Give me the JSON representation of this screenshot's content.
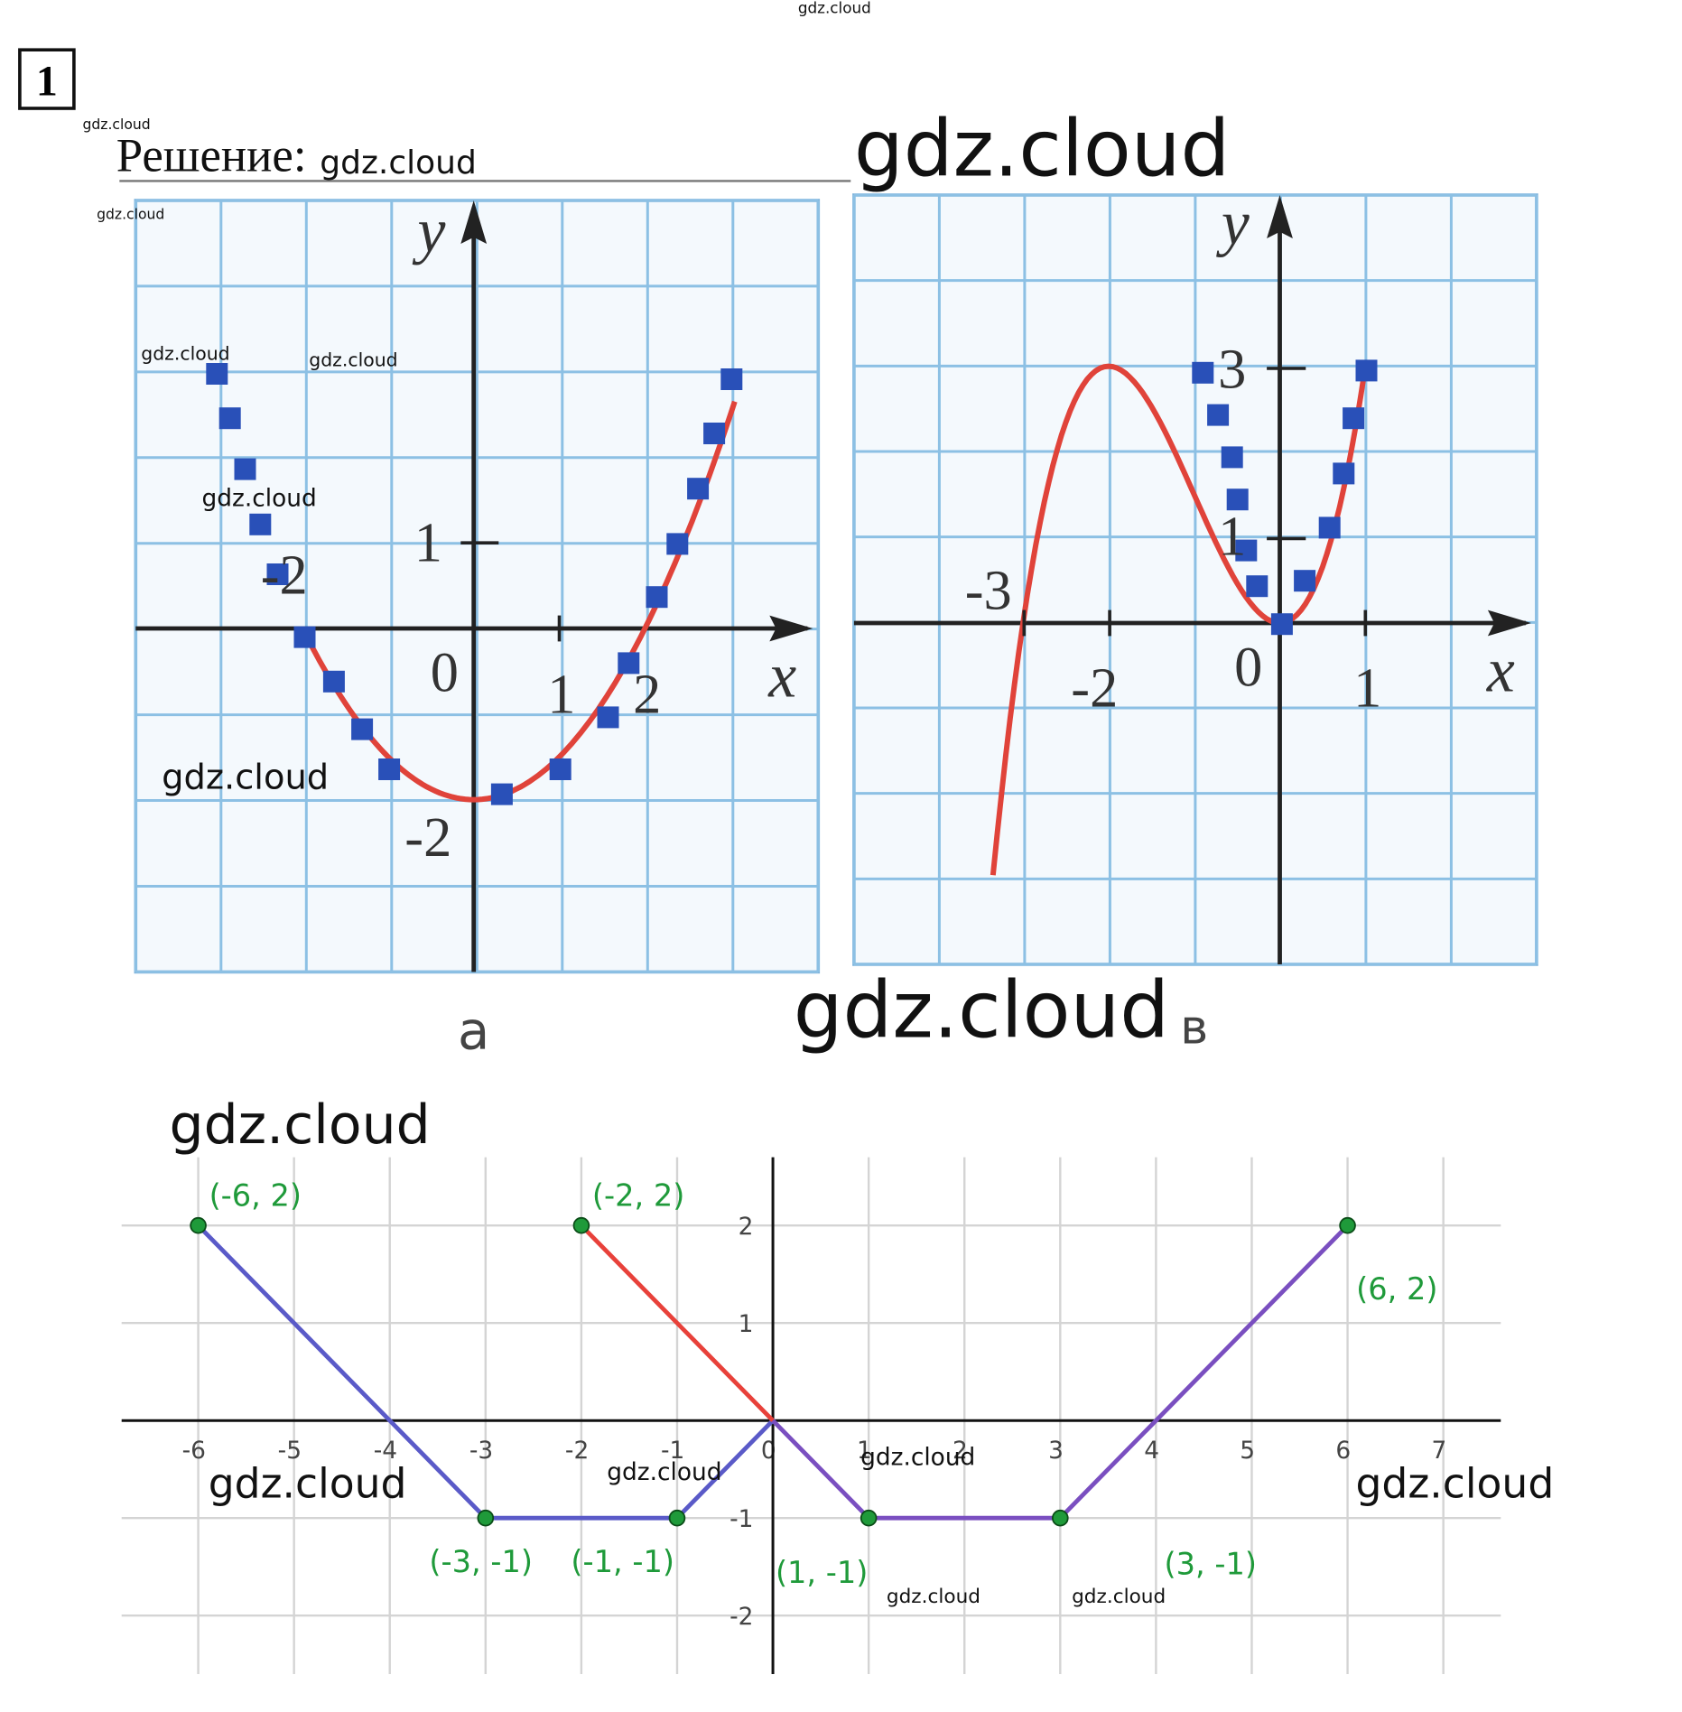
{
  "header": {
    "number": "1",
    "solution": "Решение:"
  },
  "watermarks": [
    "gdz.cloud",
    "gdz.cloud",
    "gdz.cloud",
    "gdz.cloud",
    "gdz.cloud",
    "gdz.cloud",
    "gdz.cloud",
    "gdz.cloud",
    "gdz.cloud",
    "gdz.cloud",
    "gdz.cloud",
    "gdz.cloud",
    "gdz.cloud",
    "gdz.cloud",
    "gdz.cloud",
    "gdz.cloud",
    "gdz.cloud"
  ],
  "graph_a": {
    "axis_y": "y",
    "axis_x": "x",
    "labels": [
      "-2",
      "0",
      "1",
      "2",
      "1",
      "-2"
    ],
    "caption": "а"
  },
  "graph_b": {
    "axis_y": "y",
    "axis_x": "x",
    "labels": [
      "-3",
      "-2",
      "0",
      "1",
      "3",
      "1"
    ],
    "caption": "в"
  },
  "plot": {
    "xlim": [
      -6.8,
      7.6
    ],
    "ylim": [
      -2.6,
      2.7
    ],
    "xticks": [
      -6,
      -5,
      -4,
      -3,
      -2,
      -1,
      0,
      1,
      2,
      3,
      4,
      5,
      6,
      7
    ],
    "yticks": [
      2,
      1,
      -1,
      -2
    ],
    "lines": [
      {
        "color": "#5a5ac8",
        "x": [
          -6,
          -3,
          -1,
          0
        ],
        "y": [
          2,
          -1,
          -1,
          0
        ]
      },
      {
        "color": "#e8413a",
        "x": [
          -2,
          0
        ],
        "y": [
          2,
          0
        ]
      },
      {
        "color": "#7a4fc0",
        "x": [
          0,
          1,
          3,
          6
        ],
        "y": [
          0,
          -1,
          -1,
          2
        ]
      }
    ],
    "points": [
      {
        "x": -6,
        "y": 2,
        "label": "(-6, 2)"
      },
      {
        "x": -2,
        "y": 2,
        "label": "(-2, 2)"
      },
      {
        "x": 6,
        "y": 2,
        "label": "(6, 2)"
      },
      {
        "x": -3,
        "y": -1,
        "label": "(-3, -1)"
      },
      {
        "x": -1,
        "y": -1,
        "label": "(-1, -1)"
      },
      {
        "x": 1,
        "y": -1,
        "label": "(1, -1)"
      },
      {
        "x": 3,
        "y": -1,
        "label": "(3, -1)"
      }
    ]
  }
}
